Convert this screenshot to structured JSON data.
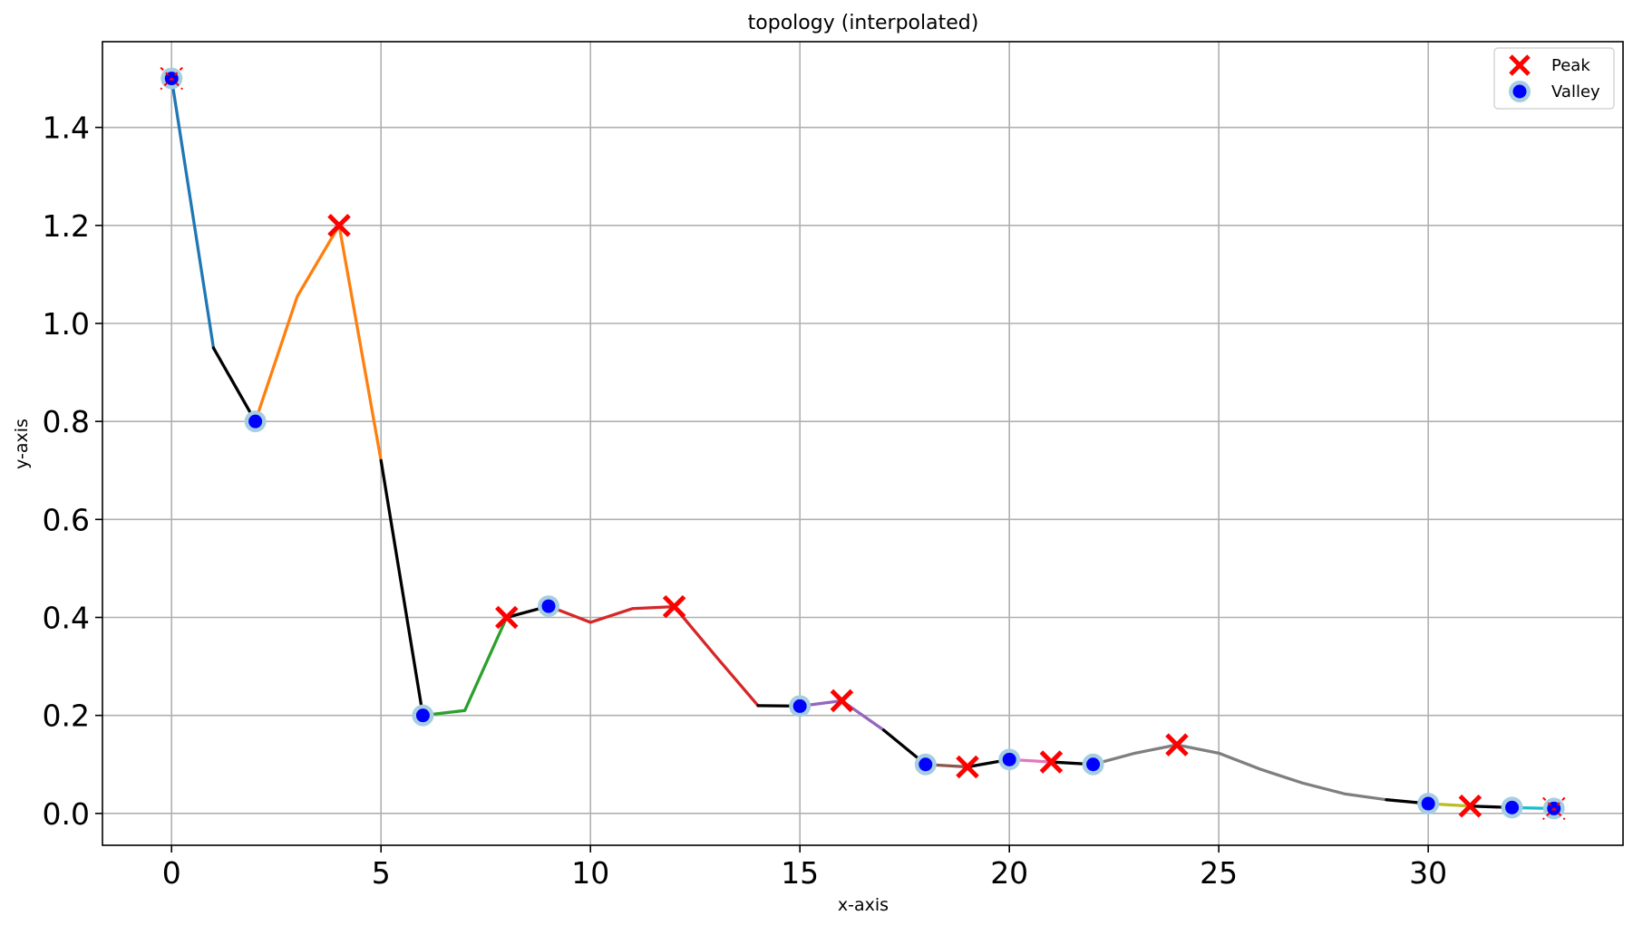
{
  "chart_data": {
    "type": "line",
    "title": "topology (interpolated)",
    "xlabel": "x-axis",
    "ylabel": "y-axis",
    "xlim": [
      -1.65,
      34.65
    ],
    "ylim": [
      -0.065,
      1.575
    ],
    "xticks": [
      0,
      5,
      10,
      15,
      20,
      25,
      30
    ],
    "yticks": [
      0.0,
      0.2,
      0.4,
      0.6,
      0.8,
      1.0,
      1.2,
      1.4
    ],
    "ytick_labels": [
      "0.0",
      "0.2",
      "0.4",
      "0.6",
      "0.8",
      "1.0",
      "1.2",
      "1.4"
    ],
    "grid": true,
    "legend_position": "top-right",
    "legend": [
      {
        "label": "Peak",
        "marker": "x",
        "color": "#ff0000"
      },
      {
        "label": "Valley",
        "marker": "o",
        "color": "#0000ff",
        "halo": "#a6cee3"
      }
    ],
    "line": {
      "x": [
        0,
        1,
        2,
        3,
        4,
        5,
        6,
        7,
        8,
        9,
        10,
        11,
        12,
        13,
        14,
        15,
        16,
        17,
        18,
        19,
        20,
        21,
        22,
        23,
        24,
        25,
        26,
        27,
        28,
        29,
        30,
        31,
        32,
        33
      ],
      "y": [
        1.5,
        0.95,
        0.8,
        1.055,
        1.2,
        0.72,
        0.2,
        0.21,
        0.4,
        0.423,
        0.39,
        0.418,
        0.422,
        0.32,
        0.22,
        0.219,
        0.23,
        0.17,
        0.1,
        0.095,
        0.11,
        0.105,
        0.1,
        0.123,
        0.14,
        0.123,
        0.09,
        0.062,
        0.04,
        0.028,
        0.02,
        0.015,
        0.012,
        0.01
      ]
    },
    "segments": [
      {
        "from": 0,
        "to": 1,
        "color": "#1f77b4"
      },
      {
        "from": 1,
        "to": 2,
        "color": "#000000"
      },
      {
        "from": 2,
        "to": 5,
        "color": "#ff7f0e"
      },
      {
        "from": 5,
        "to": 6,
        "color": "#000000"
      },
      {
        "from": 6,
        "to": 8,
        "color": "#2ca02c"
      },
      {
        "from": 8,
        "to": 9,
        "color": "#000000"
      },
      {
        "from": 9,
        "to": 14,
        "color": "#d62728"
      },
      {
        "from": 14,
        "to": 15,
        "color": "#000000"
      },
      {
        "from": 15,
        "to": 17,
        "color": "#9467bd"
      },
      {
        "from": 17,
        "to": 18,
        "color": "#000000"
      },
      {
        "from": 18,
        "to": 19,
        "color": "#8c564b"
      },
      {
        "from": 19,
        "to": 20,
        "color": "#000000"
      },
      {
        "from": 20,
        "to": 21,
        "color": "#e377c2"
      },
      {
        "from": 21,
        "to": 22,
        "color": "#000000"
      },
      {
        "from": 22,
        "to": 29,
        "color": "#7f7f7f"
      },
      {
        "from": 29,
        "to": 30,
        "color": "#000000"
      },
      {
        "from": 30,
        "to": 31,
        "color": "#bcbd22"
      },
      {
        "from": 31,
        "to": 32,
        "color": "#000000"
      },
      {
        "from": 32,
        "to": 33,
        "color": "#17becf"
      }
    ],
    "peaks": [
      {
        "x": 0,
        "y": 1.5,
        "edge": true
      },
      {
        "x": 4,
        "y": 1.2
      },
      {
        "x": 8,
        "y": 0.4
      },
      {
        "x": 12,
        "y": 0.422
      },
      {
        "x": 16,
        "y": 0.23
      },
      {
        "x": 19,
        "y": 0.095
      },
      {
        "x": 21,
        "y": 0.105
      },
      {
        "x": 24,
        "y": 0.14
      },
      {
        "x": 31,
        "y": 0.015
      },
      {
        "x": 33,
        "y": 0.01,
        "edge": true
      }
    ],
    "valleys": [
      {
        "x": 0,
        "y": 1.5
      },
      {
        "x": 2,
        "y": 0.8
      },
      {
        "x": 6,
        "y": 0.2
      },
      {
        "x": 9,
        "y": 0.423
      },
      {
        "x": 15,
        "y": 0.219
      },
      {
        "x": 18,
        "y": 0.1
      },
      {
        "x": 20,
        "y": 0.11
      },
      {
        "x": 22,
        "y": 0.1
      },
      {
        "x": 30,
        "y": 0.02
      },
      {
        "x": 32,
        "y": 0.012
      },
      {
        "x": 33,
        "y": 0.01
      }
    ]
  }
}
